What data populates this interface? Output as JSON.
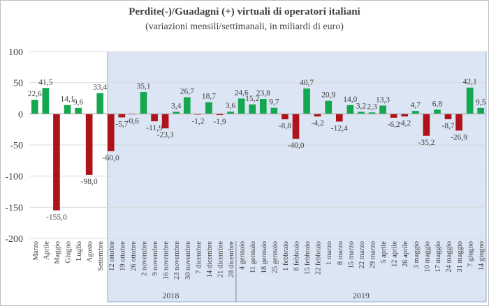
{
  "chart_data": {
    "type": "bar",
    "title": "Perdite(-)/Guadagni (+) virtuali di operatori italiani",
    "subtitle": "(variazioni mensili/settimanali, in miliardi di euro)",
    "ylim": [
      -200,
      100
    ],
    "yticks": [
      -200,
      -150,
      -100,
      -50,
      0,
      50,
      100
    ],
    "grid": true,
    "highlight_region": {
      "from": "12 ottobre",
      "to": "14 giugno",
      "color": "#dbe5f3"
    },
    "groups": [
      {
        "label": "2018",
        "from": "12 ottobre",
        "to": "28 dicembre"
      },
      {
        "label": "2019",
        "from": "4 gennaio",
        "to": "14 giugno"
      }
    ],
    "colors": {
      "positive": "#13a750",
      "negative": "#b0121b"
    },
    "categories": [
      "Marzo",
      "Aprile",
      "Maggio",
      "Giugno",
      "Luglio",
      "Agosto",
      "Settembre",
      "12 ottobre",
      "19 ottobre",
      "26 ottobre",
      "2 novembre",
      "9 novembre",
      "16 novembre",
      "23 novembre",
      "30 novembre",
      "7 dicembre",
      "14 dicembre",
      "21 dicembre",
      "28 dicembre",
      "4 gennaio",
      "11 gennaio",
      "18 gennaio",
      "25 gennaio",
      "1 febbraio",
      "8 febbraio",
      "15 febbraio",
      "22 febbraio",
      "1 marzo",
      "8 marzo",
      "15 marzo",
      "22 marzo",
      "29 marzo",
      "5 aprile",
      "12 aprile",
      "26 aprile",
      "3 maggio",
      "10 maggio",
      "17 maggio",
      "24 maggio",
      "31 maggio",
      "7 giugno",
      "14 giugno"
    ],
    "values": [
      22.6,
      41.5,
      -155.0,
      14.1,
      9.6,
      -98.0,
      33.4,
      -60.0,
      -5.7,
      -0.6,
      35.1,
      -11.9,
      -23.3,
      3.4,
      26.7,
      -1.2,
      18.7,
      -1.9,
      3.6,
      24.6,
      15.2,
      23.8,
      9.7,
      -8.8,
      -40.0,
      40.7,
      -4.2,
      20.9,
      -12.4,
      14.0,
      3.2,
      2.3,
      13.3,
      -6.2,
      -4.2,
      4.7,
      -35.2,
      6.8,
      -8.7,
      -26.9,
      42.1,
      9.5
    ],
    "data_labels": [
      "22,6",
      "41,5",
      "-155,0",
      "14,1",
      "9,6",
      "-98,0",
      "33,4",
      "-60,0",
      "-5,7",
      "-0,6",
      "35,1",
      "-11,9",
      "-23,3",
      "3,4",
      "26,7",
      "-1,2",
      "18,7",
      "-1,9",
      "3,6",
      "24,6",
      "15,2",
      "23,8",
      "9,7",
      "-8,8",
      "-40,0",
      "40,7",
      "-4,2",
      "20,9",
      "-12,4",
      "14,0",
      "3,2",
      "2,3",
      "13,3",
      "-6,2",
      "-4,2",
      "4,7",
      "-35,2",
      "6,8",
      "-8,7",
      "-26,9",
      "42,1",
      "9,5"
    ]
  }
}
